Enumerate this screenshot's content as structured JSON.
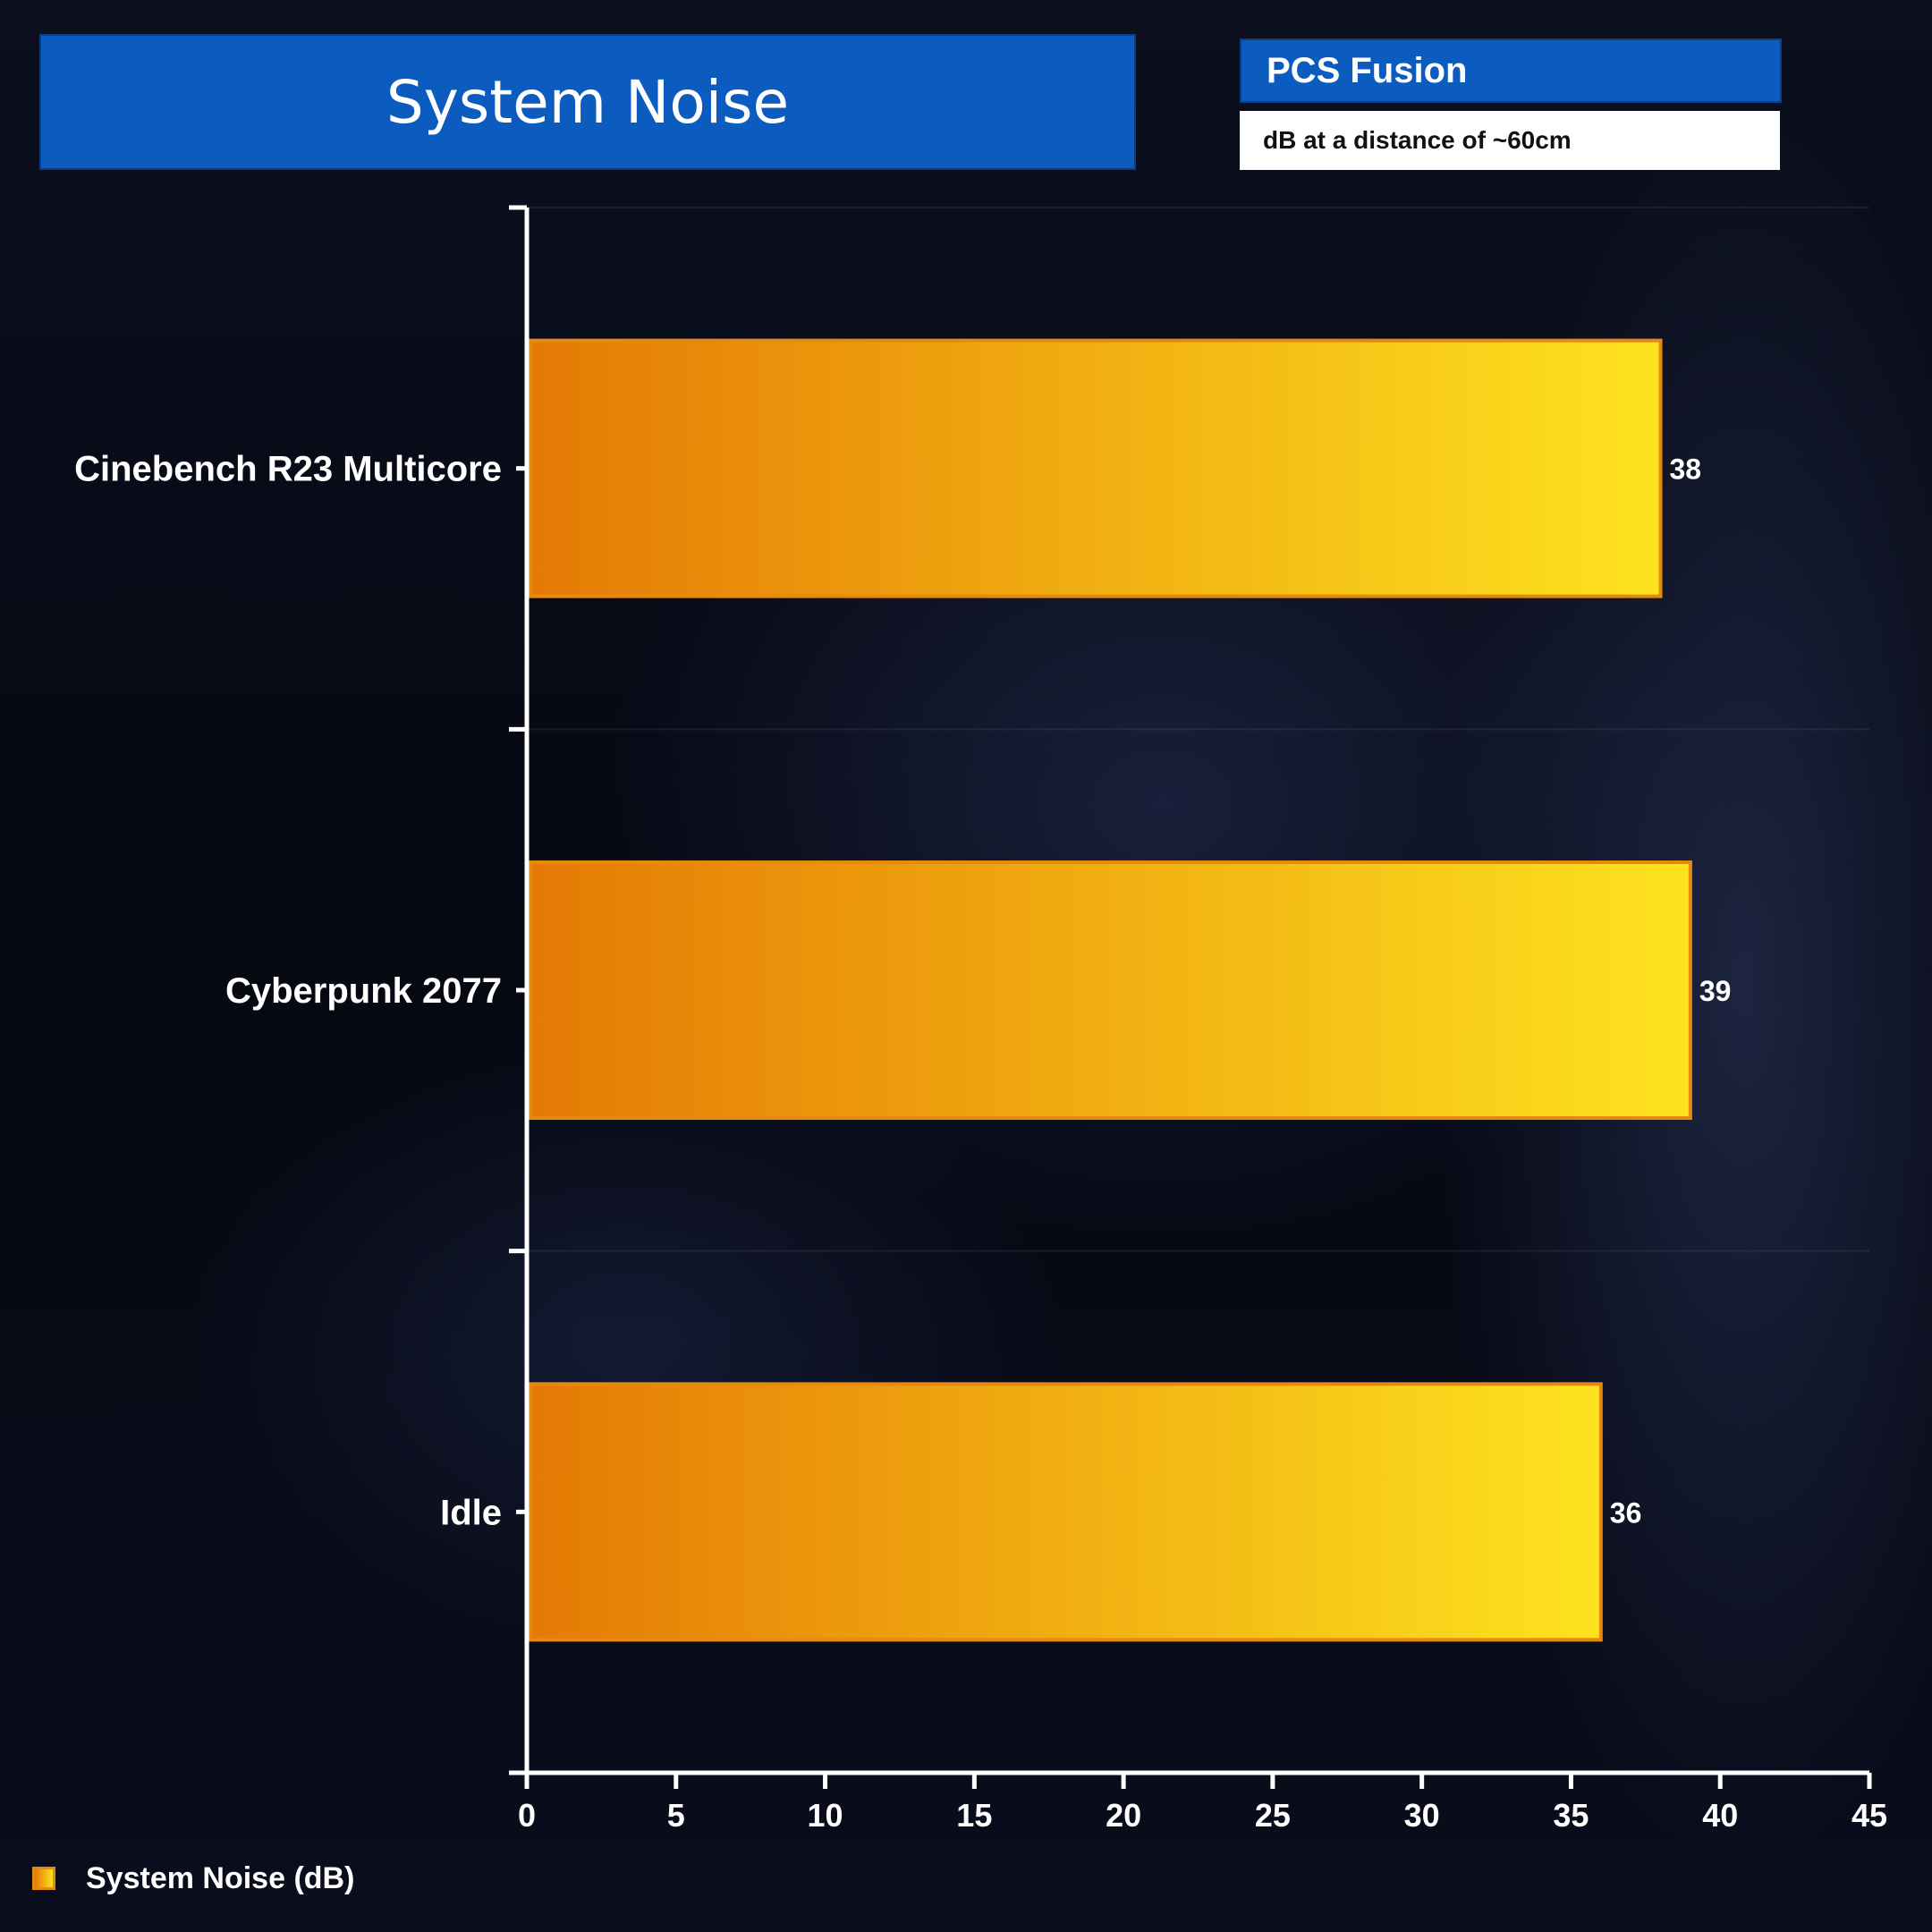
{
  "header": {
    "title": "System Noise",
    "product": "PCS Fusion",
    "unit_note": "dB at a distance of  ~60cm"
  },
  "colors": {
    "title_bg": "#0b5cbe",
    "bar_start": "#e57a05",
    "bar_end": "#fde31f",
    "bar_border": "#e58a10",
    "axis": "#ffffff",
    "text": "#ffffff"
  },
  "chart_data": {
    "type": "bar",
    "orientation": "horizontal",
    "categories": [
      "Cinebench R23 Multicore",
      "Cyberpunk 2077",
      "Idle"
    ],
    "series": [
      {
        "name": "System Noise (dB)",
        "values": [
          38,
          39,
          36
        ]
      }
    ],
    "xlim": [
      0,
      45
    ],
    "xticks": [
      0,
      5,
      10,
      15,
      20,
      25,
      30,
      35,
      40,
      45
    ],
    "grid": "horizontal",
    "legend": "bottom-left"
  },
  "legend": {
    "label": "System Noise (dB)"
  }
}
